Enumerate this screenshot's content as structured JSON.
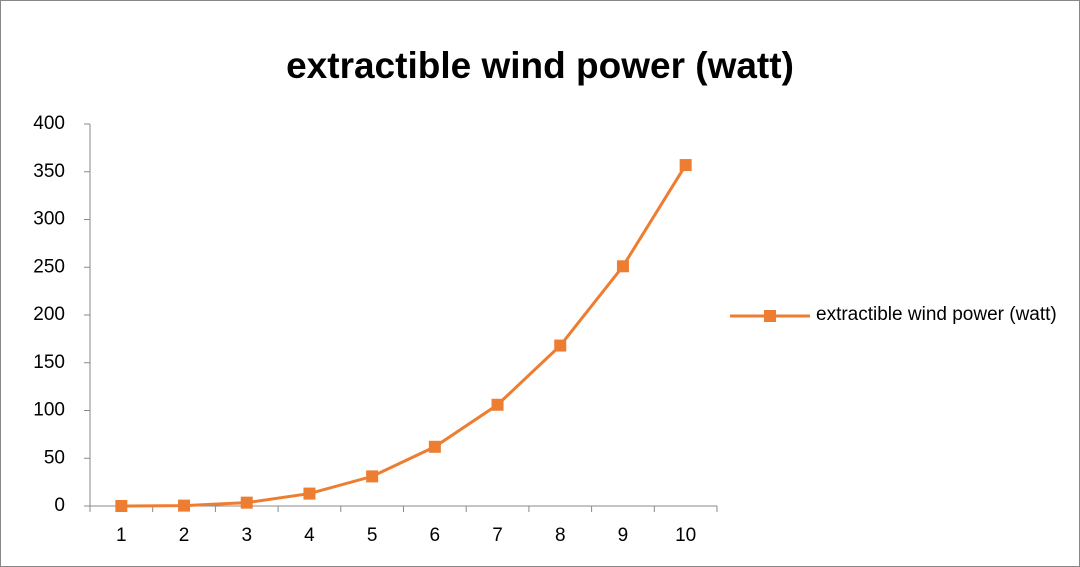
{
  "chart_data": {
    "type": "line",
    "title": "extractible wind power (watt)",
    "categories": [
      "1",
      "2",
      "3",
      "4",
      "5",
      "6",
      "7",
      "8",
      "9",
      "10"
    ],
    "series": [
      {
        "name": "extractible wind power (watt)",
        "color": "#ed7d31",
        "values": [
          0,
          0.4,
          3.5,
          13,
          31,
          62,
          106,
          168,
          251,
          357
        ]
      }
    ],
    "ylim": [
      0,
      400
    ],
    "yticks": [
      0,
      50,
      100,
      150,
      200,
      250,
      300,
      350,
      400
    ],
    "grid": false,
    "legend": "right"
  }
}
